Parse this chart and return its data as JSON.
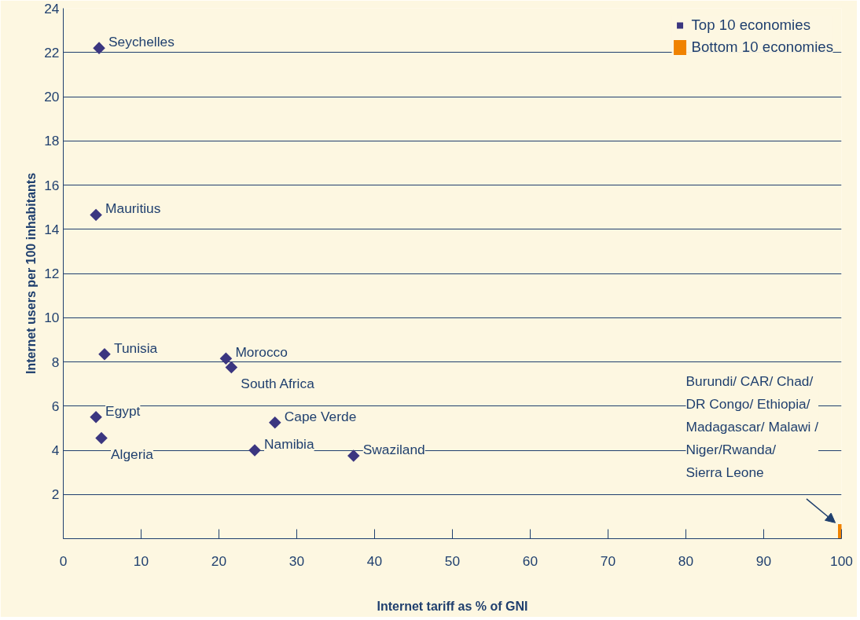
{
  "chart_data": {
    "type": "scatter",
    "xlabel": "Internet tariff as % of GNI",
    "ylabel": "Internet users per 100 inhabitants",
    "xlim": [
      0,
      100
    ],
    "ylim": [
      0,
      24
    ],
    "xticks": [
      0,
      10,
      20,
      30,
      40,
      50,
      60,
      70,
      80,
      90,
      100
    ],
    "yticks": [
      {
        "value": 0,
        "label": null
      },
      2,
      4,
      6,
      8,
      10,
      12,
      14,
      16,
      18,
      20,
      22,
      24
    ],
    "grid": "y",
    "legend": "top right",
    "series": [
      {
        "name": "Top 10 economies",
        "color": "#3b3680",
        "marker": "diamond",
        "x": [
          4.6,
          4.2,
          5.3,
          20.9,
          21.6,
          4.2,
          4.9,
          27.2,
          24.6,
          37.3
        ],
        "values": [
          22.2,
          14.65,
          8.35,
          8.15,
          7.75,
          5.5,
          4.55,
          5.25,
          4.0,
          3.75
        ]
      },
      {
        "name": "Bottom 10 economies",
        "color": "#f08200",
        "marker": "square",
        "x": [
          100
        ],
        "values": [
          0.2
        ]
      }
    ],
    "annotations": [
      {
        "text": "Seychelles",
        "x": 4.6,
        "y": 22.2
      },
      {
        "text": "Mauritius",
        "x": 4.2,
        "y": 14.65
      },
      {
        "text": "Tunisia",
        "x": 5.3,
        "y": 8.35
      },
      {
        "text": "Morocco",
        "x": 20.9,
        "y": 8.15
      },
      {
        "text": "South Africa",
        "x": 21.6,
        "y": 7.75
      },
      {
        "text": "Egypt",
        "x": 4.2,
        "y": 5.5
      },
      {
        "text": "Algeria",
        "x": 4.9,
        "y": 4.55
      },
      {
        "text": "Cape Verde",
        "x": 27.2,
        "y": 5.25
      },
      {
        "text": "Namibia",
        "x": 24.6,
        "y": 4.0
      },
      {
        "text": "Swaziland",
        "x": 37.3,
        "y": 3.75
      },
      "Burundi/ CAR/ Chad/\nDR Congo/ Ethiopia/\nMadagascar/ Malawi /\nNiger/Rwanda/\nSierra Leone"
    ]
  }
}
